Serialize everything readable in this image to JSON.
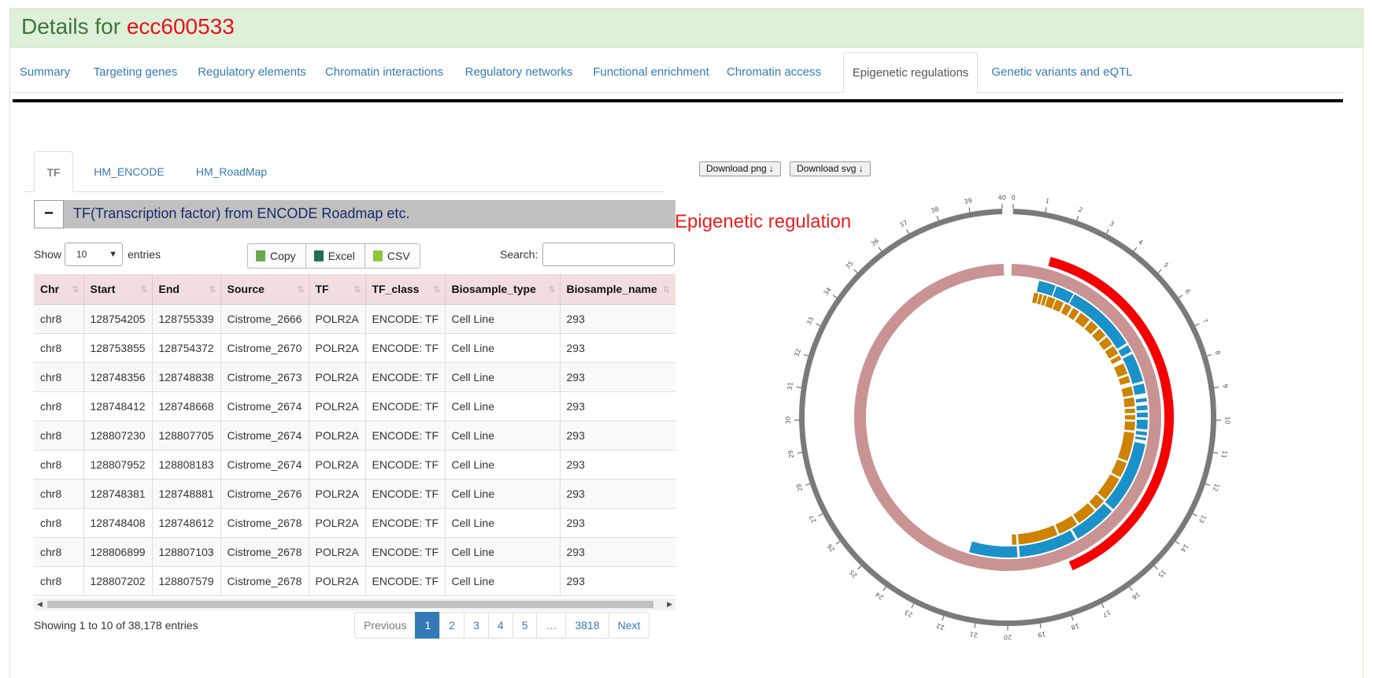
{
  "header": {
    "prefix": "Details for",
    "id": "ecc600533"
  },
  "main_tabs": [
    {
      "label": "Summary"
    },
    {
      "label": "Targeting genes"
    },
    {
      "label": "Regulatory elements"
    },
    {
      "label": "Chromatin interactions"
    },
    {
      "label": "Regulatory networks"
    },
    {
      "label": "Functional enrichment"
    },
    {
      "label": "Chromatin access"
    },
    {
      "label": "Epigenetic regulations",
      "active": true
    },
    {
      "label": "Genetic variants and eQTL"
    }
  ],
  "sub_tabs": [
    {
      "label": "TF",
      "active": true
    },
    {
      "label": "HM_ENCODE"
    },
    {
      "label": "HM_RoadMap"
    }
  ],
  "tf_panel": {
    "collapse_symbol": "−",
    "title": "TF(Transcription factor) from ENCODE Roadmap etc."
  },
  "controls": {
    "show_label": "Show",
    "entries_value": "10",
    "entries_label": "entries",
    "copy_label": "Copy",
    "excel_label": "Excel",
    "csv_label": "CSV",
    "search_label": "Search:"
  },
  "table": {
    "columns": [
      "Chr",
      "Start",
      "End",
      "Source",
      "TF",
      "TF_class",
      "Biosample_type",
      "Biosample_name"
    ],
    "rows": [
      [
        "chr8",
        "128754205",
        "128755339",
        "Cistrome_2666",
        "POLR2A",
        "ENCODE: TF",
        "Cell Line",
        "293"
      ],
      [
        "chr8",
        "128753855",
        "128754372",
        "Cistrome_2670",
        "POLR2A",
        "ENCODE: TF",
        "Cell Line",
        "293"
      ],
      [
        "chr8",
        "128748356",
        "128748838",
        "Cistrome_2673",
        "POLR2A",
        "ENCODE: TF",
        "Cell Line",
        "293"
      ],
      [
        "chr8",
        "128748412",
        "128748668",
        "Cistrome_2674",
        "POLR2A",
        "ENCODE: TF",
        "Cell Line",
        "293"
      ],
      [
        "chr8",
        "128807230",
        "128807705",
        "Cistrome_2674",
        "POLR2A",
        "ENCODE: TF",
        "Cell Line",
        "293"
      ],
      [
        "chr8",
        "128807952",
        "128808183",
        "Cistrome_2674",
        "POLR2A",
        "ENCODE: TF",
        "Cell Line",
        "293"
      ],
      [
        "chr8",
        "128748381",
        "128748881",
        "Cistrome_2676",
        "POLR2A",
        "ENCODE: TF",
        "Cell Line",
        "293"
      ],
      [
        "chr8",
        "128748408",
        "128748612",
        "Cistrome_2678",
        "POLR2A",
        "ENCODE: TF",
        "Cell Line",
        "293"
      ],
      [
        "chr8",
        "128806899",
        "128807103",
        "Cistrome_2678",
        "POLR2A",
        "ENCODE: TF",
        "Cell Line",
        "293"
      ],
      [
        "chr8",
        "128807202",
        "128807579",
        "Cistrome_2678",
        "POLR2A",
        "ENCODE: TF",
        "Cell Line",
        "293"
      ]
    ]
  },
  "footer": {
    "info": "Showing 1 to 10 of 38,178 entries",
    "pagination": [
      "Previous",
      "1",
      "2",
      "3",
      "4",
      "5",
      "…",
      "3818",
      "Next"
    ],
    "active_page": "1"
  },
  "download": {
    "png_label": "Download png ↓",
    "svg_label": "Download svg ↓"
  },
  "chart": {
    "title": "Epigenetic regulation",
    "tick_labels": [
      "0",
      "1",
      "2",
      "3",
      "4",
      "5",
      "6",
      "7",
      "8",
      "9",
      "10",
      "11",
      "12",
      "13",
      "14",
      "15",
      "16",
      "17",
      "18",
      "19",
      "20",
      "21",
      "22",
      "23",
      "24",
      "25",
      "26",
      "27",
      "28",
      "29",
      "30",
      "31",
      "32",
      "33",
      "34",
      "35",
      "36",
      "37",
      "38",
      "39",
      "40"
    ],
    "colors": {
      "ideogram": "#7a7a7a",
      "highlight": "#f50000",
      "track_pink": "#c99394",
      "track_blue": "#1a91c9",
      "track_orange": "#cd8200"
    }
  }
}
